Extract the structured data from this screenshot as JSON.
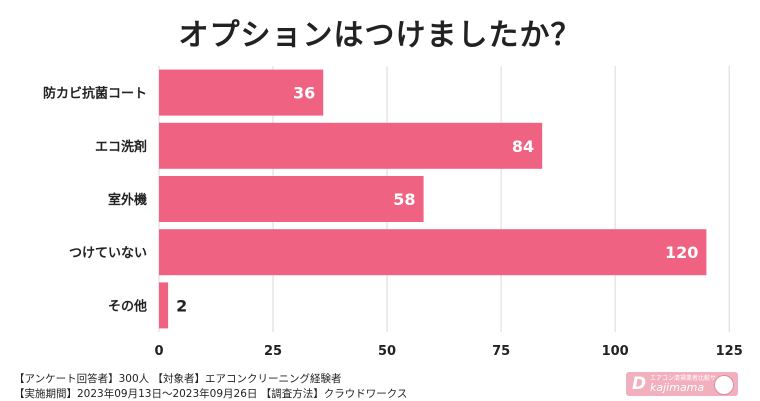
{
  "title": "オプションはつけましたか？",
  "footer": {
    "line1": "【アンケート回答者】300人 【対象者】エアコンクリーニング経験者",
    "line2": "【実施期間】2023年09月13日～2023年09月26日 【調査方法】クラウドワークス"
  },
  "logo": {
    "mark": "D",
    "name": "kajimama",
    "tagline": "エアコン清掃業者比較サイト"
  },
  "colors": {
    "bar": "#ef6282",
    "grid": "#d9d9d9",
    "label_inside": "#ffffff",
    "label_outside": "#222222"
  },
  "chart_data": {
    "type": "bar",
    "orientation": "horizontal",
    "categories": [
      "防カビ抗菌コート",
      "エコ洗剤",
      "室外機",
      "つけていない",
      "その他"
    ],
    "values": [
      36,
      84,
      58,
      120,
      2
    ],
    "xlim": [
      0,
      130
    ],
    "xticks": [
      0,
      25,
      50,
      75,
      100,
      125
    ],
    "grid": "vertical",
    "data_labels": true
  }
}
